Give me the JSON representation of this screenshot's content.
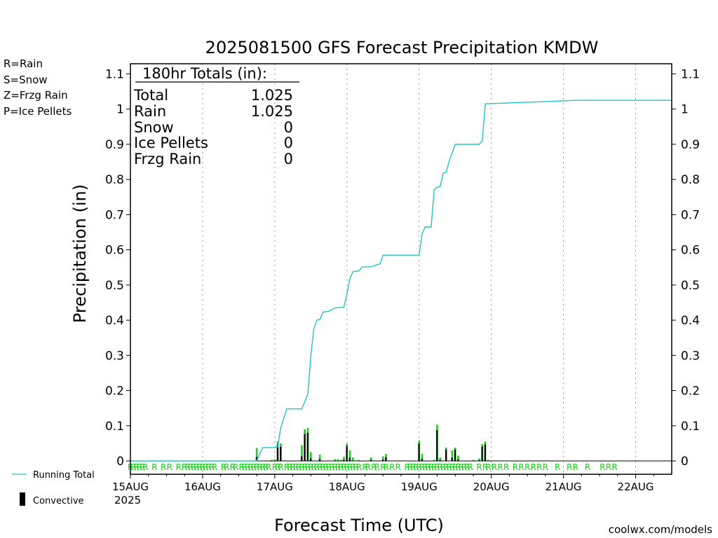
{
  "chart_data": {
    "type": "bar",
    "title": "2025081500 GFS Forecast Precipitation KMDW",
    "xlabel": "Forecast Time (UTC)",
    "ylabel": "Precipitation (in)",
    "ylim": [
      0,
      1.1
    ],
    "yticks": [
      "0",
      "0.1",
      "0.2",
      "0.3",
      "0.4",
      "0.5",
      "0.6",
      "0.7",
      "0.8",
      "0.9",
      "1",
      "1.1"
    ],
    "xlim_hours": [
      0,
      180
    ],
    "xtick_labels": [
      "15AUG",
      "16AUG",
      "17AUG",
      "18AUG",
      "19AUG",
      "20AUG",
      "21AUG",
      "22AUG"
    ],
    "year_label": "2025",
    "grid": "vertical dotted at each day",
    "legend_top": [
      {
        "label": "R=Rain",
        "color": "#22cc22"
      },
      {
        "label": "S=Snow",
        "color": "#4455dd"
      },
      {
        "label": "Z=Frzg Rain",
        "color": "#ee8833"
      },
      {
        "label": "P=Ice Pellets",
        "color": "#dd2299"
      }
    ],
    "legend_bottom": [
      {
        "label": "Running Total",
        "color": "#22c4c4",
        "symbol": "line"
      },
      {
        "label": "Convective",
        "color": "#000000",
        "symbol": "bar"
      }
    ],
    "totals": {
      "header": "180hr Totals (in):",
      "rows": [
        {
          "label": "Total",
          "value": "1.025"
        },
        {
          "label": "Rain",
          "value": "1.025"
        },
        {
          "label": "Snow",
          "value": "0"
        },
        {
          "label": "Ice Pellets",
          "value": "0"
        },
        {
          "label": "Frzg Rain",
          "value": "0"
        }
      ]
    },
    "running_total": {
      "name": "Running Total",
      "x_hours": [
        0,
        42,
        44,
        48,
        49,
        50,
        52,
        57,
        59,
        60,
        61,
        62,
        63,
        64,
        66,
        68,
        71,
        72,
        73,
        74,
        76,
        77,
        80,
        83,
        84,
        86,
        96,
        97,
        98,
        100,
        101,
        102,
        103,
        104,
        105,
        106,
        108,
        110,
        116,
        117,
        118,
        134,
        148,
        180
      ],
      "values": [
        0,
        0,
        0.038,
        0.038,
        0.04,
        0.095,
        0.148,
        0.148,
        0.19,
        0.3,
        0.375,
        0.4,
        0.402,
        0.423,
        0.425,
        0.435,
        0.437,
        0.475,
        0.52,
        0.538,
        0.54,
        0.551,
        0.552,
        0.56,
        0.585,
        0.585,
        0.585,
        0.645,
        0.665,
        0.665,
        0.77,
        0.778,
        0.78,
        0.818,
        0.82,
        0.852,
        0.9,
        0.9,
        0.9,
        0.91,
        1.015,
        1.02,
        1.025,
        1.025
      ]
    },
    "bars": {
      "x_hours": [
        42,
        47,
        48,
        49,
        50,
        57,
        58,
        59,
        60,
        63,
        68,
        69,
        70,
        71,
        72,
        73,
        74,
        76,
        80,
        84,
        85,
        96,
        97,
        101,
        102,
        103,
        105,
        107,
        108,
        109,
        114,
        116,
        117,
        118,
        119
      ],
      "values": [
        0.037,
        0.003,
        0.005,
        0.056,
        0.05,
        0.045,
        0.09,
        0.094,
        0.025,
        0.018,
        0.005,
        0.005,
        0.003,
        0.012,
        0.05,
        0.03,
        0.01,
        0.003,
        0.01,
        0.013,
        0.02,
        0.058,
        0.02,
        0.003,
        0.103,
        0.01,
        0.038,
        0.03,
        0.038,
        0.015,
        0.003,
        0.007,
        0.048,
        0.055,
        0.003
      ],
      "convective_fraction": [
        0.3,
        0,
        0,
        0.85,
        0.8,
        0.3,
        0.85,
        0.85,
        0.3,
        0.3,
        0,
        0,
        0,
        0.3,
        0.85,
        0.3,
        0,
        0,
        0.3,
        0.3,
        0.5,
        0.85,
        0.3,
        0,
        0.85,
        0.3,
        0.85,
        0.3,
        0.85,
        0.3,
        0,
        0.3,
        0.85,
        0.85,
        0
      ]
    },
    "ptype_markers": {
      "text": "R",
      "x_hours": [
        0,
        1,
        2,
        3,
        4,
        5,
        8,
        11,
        13,
        16,
        18,
        19,
        20,
        21,
        22,
        23,
        24,
        25,
        26,
        27,
        28,
        31,
        32,
        34,
        35,
        37,
        38,
        39,
        40,
        41,
        42,
        43,
        44,
        45,
        46,
        48,
        49,
        50,
        52,
        53,
        54,
        55,
        56,
        57,
        58,
        59,
        60,
        61,
        62,
        63,
        64,
        65,
        66,
        67,
        68,
        69,
        70,
        71,
        72,
        73,
        74,
        75,
        76,
        78,
        79,
        81,
        82,
        84,
        85,
        87,
        89,
        92,
        93,
        94,
        95,
        96,
        97,
        98,
        99,
        100,
        101,
        102,
        103,
        104,
        105,
        106,
        107,
        108,
        109,
        110,
        111,
        112,
        113,
        116,
        118,
        119,
        121,
        123,
        125,
        128,
        130,
        132,
        134,
        136,
        138,
        142,
        146,
        148,
        152,
        157,
        159,
        161
      ]
    },
    "credit": "coolwx.com/models"
  }
}
